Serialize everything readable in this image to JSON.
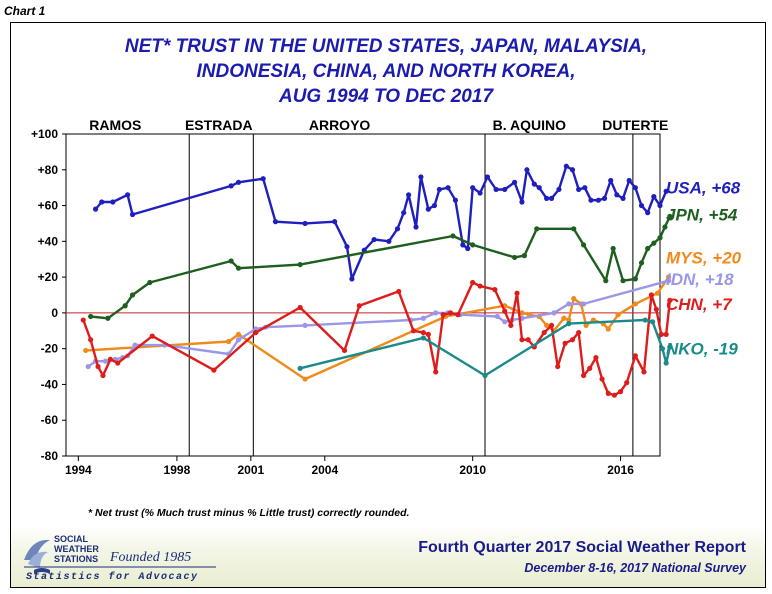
{
  "page_label": "Chart 1",
  "footnote": "* Net trust (% Much trust minus % Little trust) correctly rounded.",
  "footer": {
    "logo_line1": "SOCIAL",
    "logo_line2": "WEATHER",
    "logo_line3": "STATIONS",
    "logo_founded": "Founded 1985",
    "logo_tagline": "Statistics for Advocacy",
    "report_title": "Fourth Quarter 2017 Social Weather Report",
    "report_subtitle": "December 8-16, 2017 National Survey"
  },
  "chart_data": {
    "type": "line",
    "title": [
      "NET* TRUST IN THE UNITED STATES, JAPAN, MALAYSIA,",
      "INDONESIA, CHINA, AND NORTH KOREA,",
      "AUG 1994 TO DEC 2017"
    ],
    "xlabel": "",
    "ylabel": "",
    "xlim": [
      1993.5,
      2017.6
    ],
    "ylim": [
      -80,
      100
    ],
    "x_ticks": [
      1994,
      1998,
      2001,
      2004,
      2010,
      2016
    ],
    "y_ticks": [
      -80,
      -60,
      -40,
      -20,
      0,
      20,
      40,
      60,
      80,
      100
    ],
    "y_tick_labels": [
      "-80",
      "-60",
      "-40",
      "-20",
      "0",
      "+20",
      "+40",
      "+60",
      "+80",
      "+100"
    ],
    "zero_line_color": "#cc2222",
    "grid": false,
    "era_dividers": [
      1998.5,
      2001.1,
      2010.5,
      2016.5
    ],
    "eras": [
      {
        "label": "RAMOS",
        "x": 1995.5
      },
      {
        "label": "ESTRADA",
        "x": 1999.7
      },
      {
        "label": "ARROYO",
        "x": 2004.6
      },
      {
        "label": "B. AQUINO",
        "x": 2012.3
      },
      {
        "label": "DUTERTE",
        "x": 2016.6
      }
    ],
    "series": [
      {
        "name": "USA",
        "end_label": "USA, +68",
        "color": "#1f1fbf",
        "label_y": 70,
        "points": [
          [
            1994.7,
            58
          ],
          [
            1994.95,
            62
          ],
          [
            1995.4,
            62
          ],
          [
            1996.0,
            66
          ],
          [
            1996.2,
            55
          ],
          [
            2000.2,
            71
          ],
          [
            2000.5,
            73
          ],
          [
            2001.5,
            75
          ],
          [
            2002.0,
            51
          ],
          [
            2003.2,
            50
          ],
          [
            2004.4,
            51
          ],
          [
            2004.9,
            37
          ],
          [
            2005.1,
            19
          ],
          [
            2005.6,
            35
          ],
          [
            2006.0,
            41
          ],
          [
            2006.6,
            40
          ],
          [
            2006.95,
            47
          ],
          [
            2007.2,
            56
          ],
          [
            2007.4,
            66
          ],
          [
            2007.7,
            48
          ],
          [
            2007.9,
            76
          ],
          [
            2008.2,
            58
          ],
          [
            2008.45,
            60
          ],
          [
            2008.65,
            69
          ],
          [
            2009.0,
            70
          ],
          [
            2009.3,
            63
          ],
          [
            2009.6,
            38
          ],
          [
            2009.8,
            36
          ],
          [
            2010.0,
            70
          ],
          [
            2010.3,
            67
          ],
          [
            2010.6,
            76
          ],
          [
            2010.95,
            69
          ],
          [
            2011.3,
            69
          ],
          [
            2011.7,
            73
          ],
          [
            2012.0,
            62
          ],
          [
            2012.2,
            80
          ],
          [
            2012.5,
            72
          ],
          [
            2012.7,
            70
          ],
          [
            2013.0,
            64
          ],
          [
            2013.2,
            64
          ],
          [
            2013.5,
            69
          ],
          [
            2013.8,
            82
          ],
          [
            2014.05,
            80
          ],
          [
            2014.3,
            69
          ],
          [
            2014.55,
            70
          ],
          [
            2014.8,
            63
          ],
          [
            2015.1,
            63
          ],
          [
            2015.35,
            64
          ],
          [
            2015.6,
            74
          ],
          [
            2015.85,
            66
          ],
          [
            2016.1,
            64
          ],
          [
            2016.35,
            74
          ],
          [
            2016.6,
            70
          ],
          [
            2016.85,
            60
          ],
          [
            2017.1,
            56
          ],
          [
            2017.35,
            65
          ],
          [
            2017.6,
            60
          ],
          [
            2017.85,
            68
          ]
        ]
      },
      {
        "name": "JPN",
        "end_label": "JPN, +54",
        "color": "#1e5e1e",
        "label_y": 55,
        "points": [
          [
            1994.5,
            -2
          ],
          [
            1995.2,
            -3
          ],
          [
            1995.9,
            4
          ],
          [
            1996.2,
            10
          ],
          [
            1996.9,
            17
          ],
          [
            2000.2,
            29
          ],
          [
            2000.5,
            25
          ],
          [
            2003.0,
            27
          ],
          [
            2009.2,
            43
          ],
          [
            2010.0,
            38
          ],
          [
            2011.7,
            31
          ],
          [
            2012.1,
            32
          ],
          [
            2012.6,
            47
          ],
          [
            2014.1,
            47
          ],
          [
            2014.5,
            38
          ],
          [
            2015.4,
            18
          ],
          [
            2015.7,
            36
          ],
          [
            2016.1,
            18
          ],
          [
            2016.6,
            19
          ],
          [
            2016.85,
            28
          ],
          [
            2017.1,
            36
          ],
          [
            2017.35,
            39
          ],
          [
            2017.6,
            42
          ],
          [
            2017.8,
            48
          ],
          [
            2018.0,
            54
          ]
        ]
      },
      {
        "name": "MYS",
        "end_label": "MYS, +20",
        "color": "#f08a1a",
        "label_y": 31,
        "points": [
          [
            1994.3,
            -21
          ],
          [
            2000.1,
            -16
          ],
          [
            2000.5,
            -12
          ],
          [
            2003.2,
            -37
          ],
          [
            2008.9,
            -2
          ],
          [
            2011.3,
            4
          ],
          [
            2012.0,
            0
          ],
          [
            2012.3,
            -1
          ],
          [
            2012.7,
            -2
          ],
          [
            2013.0,
            -7
          ],
          [
            2013.3,
            -10
          ],
          [
            2013.7,
            -3
          ],
          [
            2013.9,
            -4
          ],
          [
            2014.1,
            8
          ],
          [
            2014.4,
            5
          ],
          [
            2014.6,
            -7
          ],
          [
            2014.9,
            -4
          ],
          [
            2015.3,
            -6
          ],
          [
            2015.5,
            -9
          ],
          [
            2015.9,
            -1
          ],
          [
            2016.6,
            5
          ],
          [
            2017.5,
            11
          ],
          [
            2017.95,
            20
          ]
        ]
      },
      {
        "name": "IDN",
        "end_label": "IDN, +18",
        "color": "#9a96e8",
        "label_y": 19,
        "points": [
          [
            1994.4,
            -30
          ],
          [
            1994.7,
            -27
          ],
          [
            1995.1,
            -27
          ],
          [
            1995.5,
            -26
          ],
          [
            1995.8,
            -25
          ],
          [
            1996.0,
            -24
          ],
          [
            1996.3,
            -18
          ],
          [
            1997.5,
            -18
          ],
          [
            2000.1,
            -23
          ],
          [
            2000.5,
            -15
          ],
          [
            2001.2,
            -9
          ],
          [
            2001.6,
            -8
          ],
          [
            2003.2,
            -7
          ],
          [
            2007.5,
            -4
          ],
          [
            2008.0,
            -3
          ],
          [
            2008.5,
            0
          ],
          [
            2009.0,
            0
          ],
          [
            2009.5,
            -1
          ],
          [
            2011.0,
            -2
          ],
          [
            2011.3,
            -5
          ],
          [
            2011.6,
            -4
          ],
          [
            2012.0,
            -3
          ],
          [
            2013.3,
            0
          ],
          [
            2013.9,
            5
          ],
          [
            2014.5,
            5
          ],
          [
            2017.95,
            18
          ]
        ]
      },
      {
        "name": "CHN",
        "end_label": "CHN, +7",
        "color": "#dd1c1c",
        "label_y": 5,
        "points": [
          [
            1994.2,
            -4
          ],
          [
            1994.5,
            -15
          ],
          [
            1994.8,
            -30
          ],
          [
            1995.0,
            -35
          ],
          [
            1995.3,
            -26
          ],
          [
            1995.6,
            -28
          ],
          [
            1997.0,
            -13
          ],
          [
            1999.5,
            -32
          ],
          [
            2001.2,
            -11
          ],
          [
            2003.0,
            3
          ],
          [
            2004.8,
            -21
          ],
          [
            2005.4,
            4
          ],
          [
            2007.0,
            12
          ],
          [
            2007.6,
            -10
          ],
          [
            2008.0,
            -11
          ],
          [
            2008.2,
            -12
          ],
          [
            2008.5,
            -33
          ],
          [
            2008.8,
            -1
          ],
          [
            2009.1,
            0
          ],
          [
            2009.4,
            -1
          ],
          [
            2010.0,
            17
          ],
          [
            2010.3,
            15
          ],
          [
            2010.9,
            13
          ],
          [
            2011.3,
            1
          ],
          [
            2011.55,
            -7
          ],
          [
            2011.8,
            11
          ],
          [
            2012.0,
            -15
          ],
          [
            2012.25,
            -15
          ],
          [
            2012.5,
            -19
          ],
          [
            2012.9,
            -11
          ],
          [
            2013.2,
            -7
          ],
          [
            2013.45,
            -30
          ],
          [
            2013.75,
            -17
          ],
          [
            2014.05,
            -15
          ],
          [
            2014.3,
            -11
          ],
          [
            2014.5,
            -35
          ],
          [
            2014.75,
            -31
          ],
          [
            2015.0,
            -25
          ],
          [
            2015.25,
            -37
          ],
          [
            2015.5,
            -45
          ],
          [
            2015.75,
            -46
          ],
          [
            2016.0,
            -44
          ],
          [
            2016.25,
            -39
          ],
          [
            2016.6,
            -24
          ],
          [
            2016.95,
            -33
          ],
          [
            2017.25,
            10
          ],
          [
            2017.45,
            2
          ],
          [
            2017.65,
            -12
          ],
          [
            2017.85,
            -12
          ],
          [
            2018.0,
            7
          ]
        ]
      },
      {
        "name": "NKO",
        "end_label": "NKO, -19",
        "color": "#1a8a8a",
        "label_y": -20,
        "points": [
          [
            2003.0,
            -31
          ],
          [
            2008.0,
            -14
          ],
          [
            2010.5,
            -35
          ],
          [
            2013.9,
            -6
          ],
          [
            2017.0,
            -4
          ],
          [
            2017.3,
            -5
          ],
          [
            2017.7,
            -20
          ],
          [
            2017.85,
            -28
          ],
          [
            2018.0,
            -19
          ]
        ]
      }
    ]
  }
}
